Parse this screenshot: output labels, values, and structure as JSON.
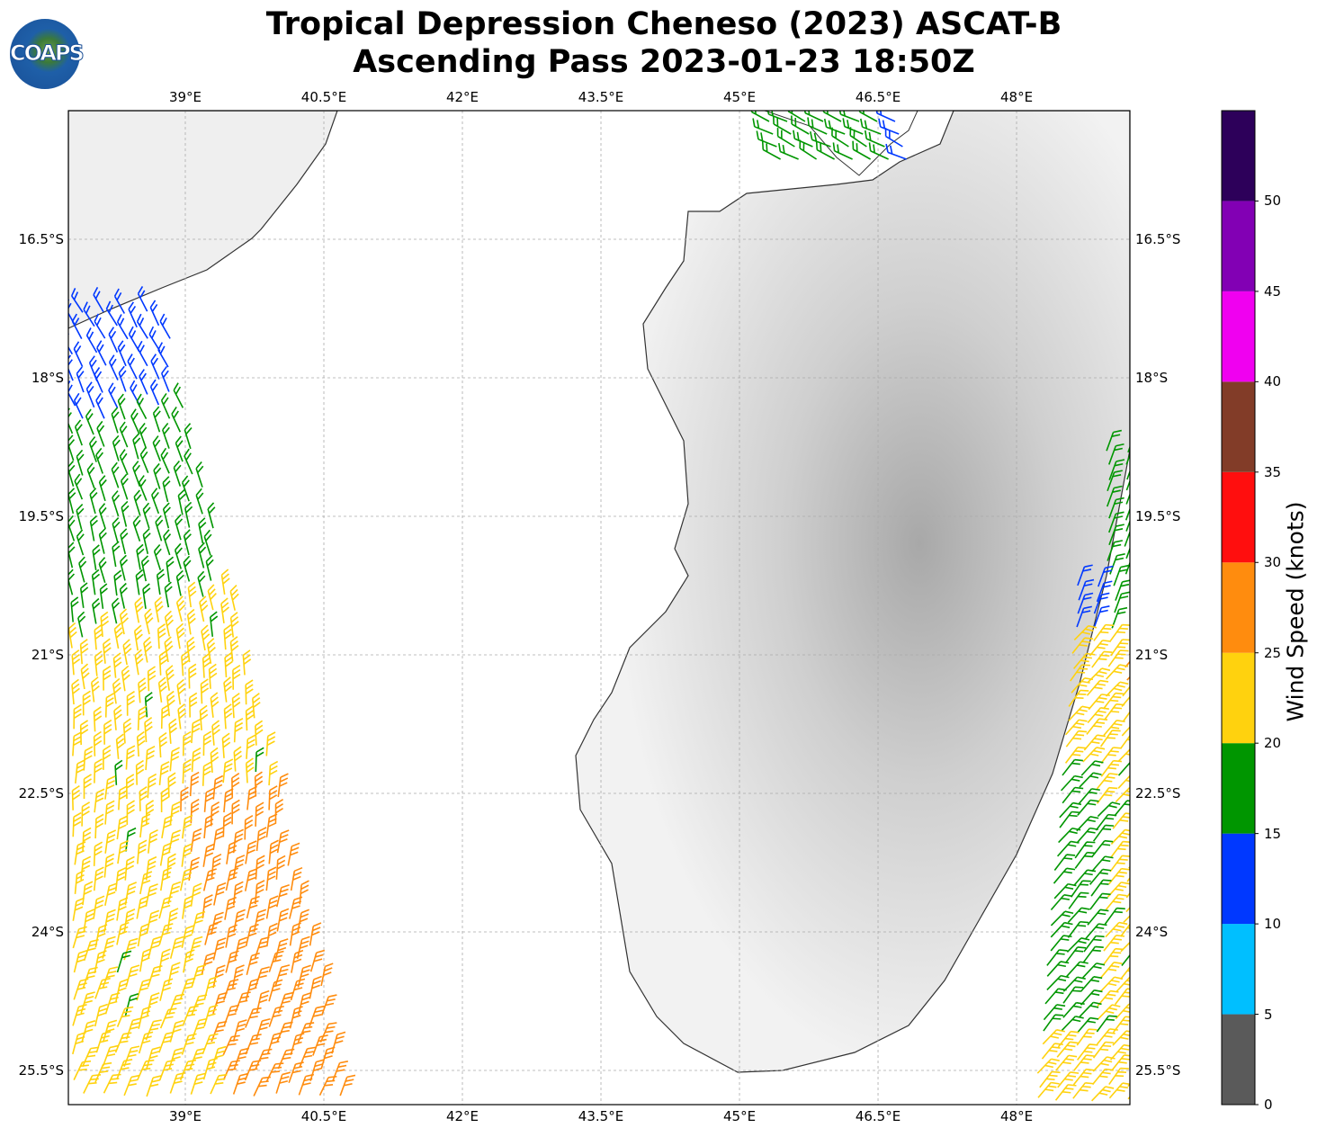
{
  "title": {
    "line1": "Tropical Depression Cheneso (2023) ASCAT-B",
    "line2": "Ascending Pass 2023-01-23 18:50Z"
  },
  "logo": {
    "text": "COAPS"
  },
  "map": {
    "lon_ticks": [
      "39°E",
      "40.5°E",
      "42°E",
      "43.5°E",
      "45°E",
      "46.5°E",
      "48°E"
    ],
    "lon_values": [
      39,
      40.5,
      42,
      43.5,
      45,
      46.5,
      48
    ],
    "lat_ticks": [
      "16.5°S",
      "18°S",
      "19.5°S",
      "21°S",
      "22.5°S",
      "24°S",
      "25.5°S"
    ],
    "lat_values": [
      16.5,
      18,
      19.5,
      21,
      22.5,
      24,
      25.5
    ],
    "extent": {
      "lon": [
        37.73,
        49.23
      ],
      "lat": [
        15.1,
        25.88
      ]
    }
  },
  "colorbar": {
    "label": "Wind Speed (knots)",
    "ticks": [
      "0",
      "5",
      "10",
      "15",
      "20",
      "25",
      "30",
      "35",
      "40",
      "45",
      "50"
    ],
    "bins": [
      {
        "min": 0,
        "max": 5,
        "color": "#5a5a5a"
      },
      {
        "min": 5,
        "max": 10,
        "color": "#00bfff"
      },
      {
        "min": 10,
        "max": 15,
        "color": "#0038ff"
      },
      {
        "min": 15,
        "max": 20,
        "color": "#009600"
      },
      {
        "min": 20,
        "max": 25,
        "color": "#ffd20e"
      },
      {
        "min": 25,
        "max": 30,
        "color": "#ff8c0e"
      },
      {
        "min": 30,
        "max": 35,
        "color": "#ff0e0e"
      },
      {
        "min": 35,
        "max": 40,
        "color": "#823c28"
      },
      {
        "min": 40,
        "max": 45,
        "color": "#f000f0"
      },
      {
        "min": 45,
        "max": 50,
        "color": "#8200b4"
      },
      {
        "min": 50,
        "max": 55,
        "color": "#2d005a"
      }
    ]
  }
}
